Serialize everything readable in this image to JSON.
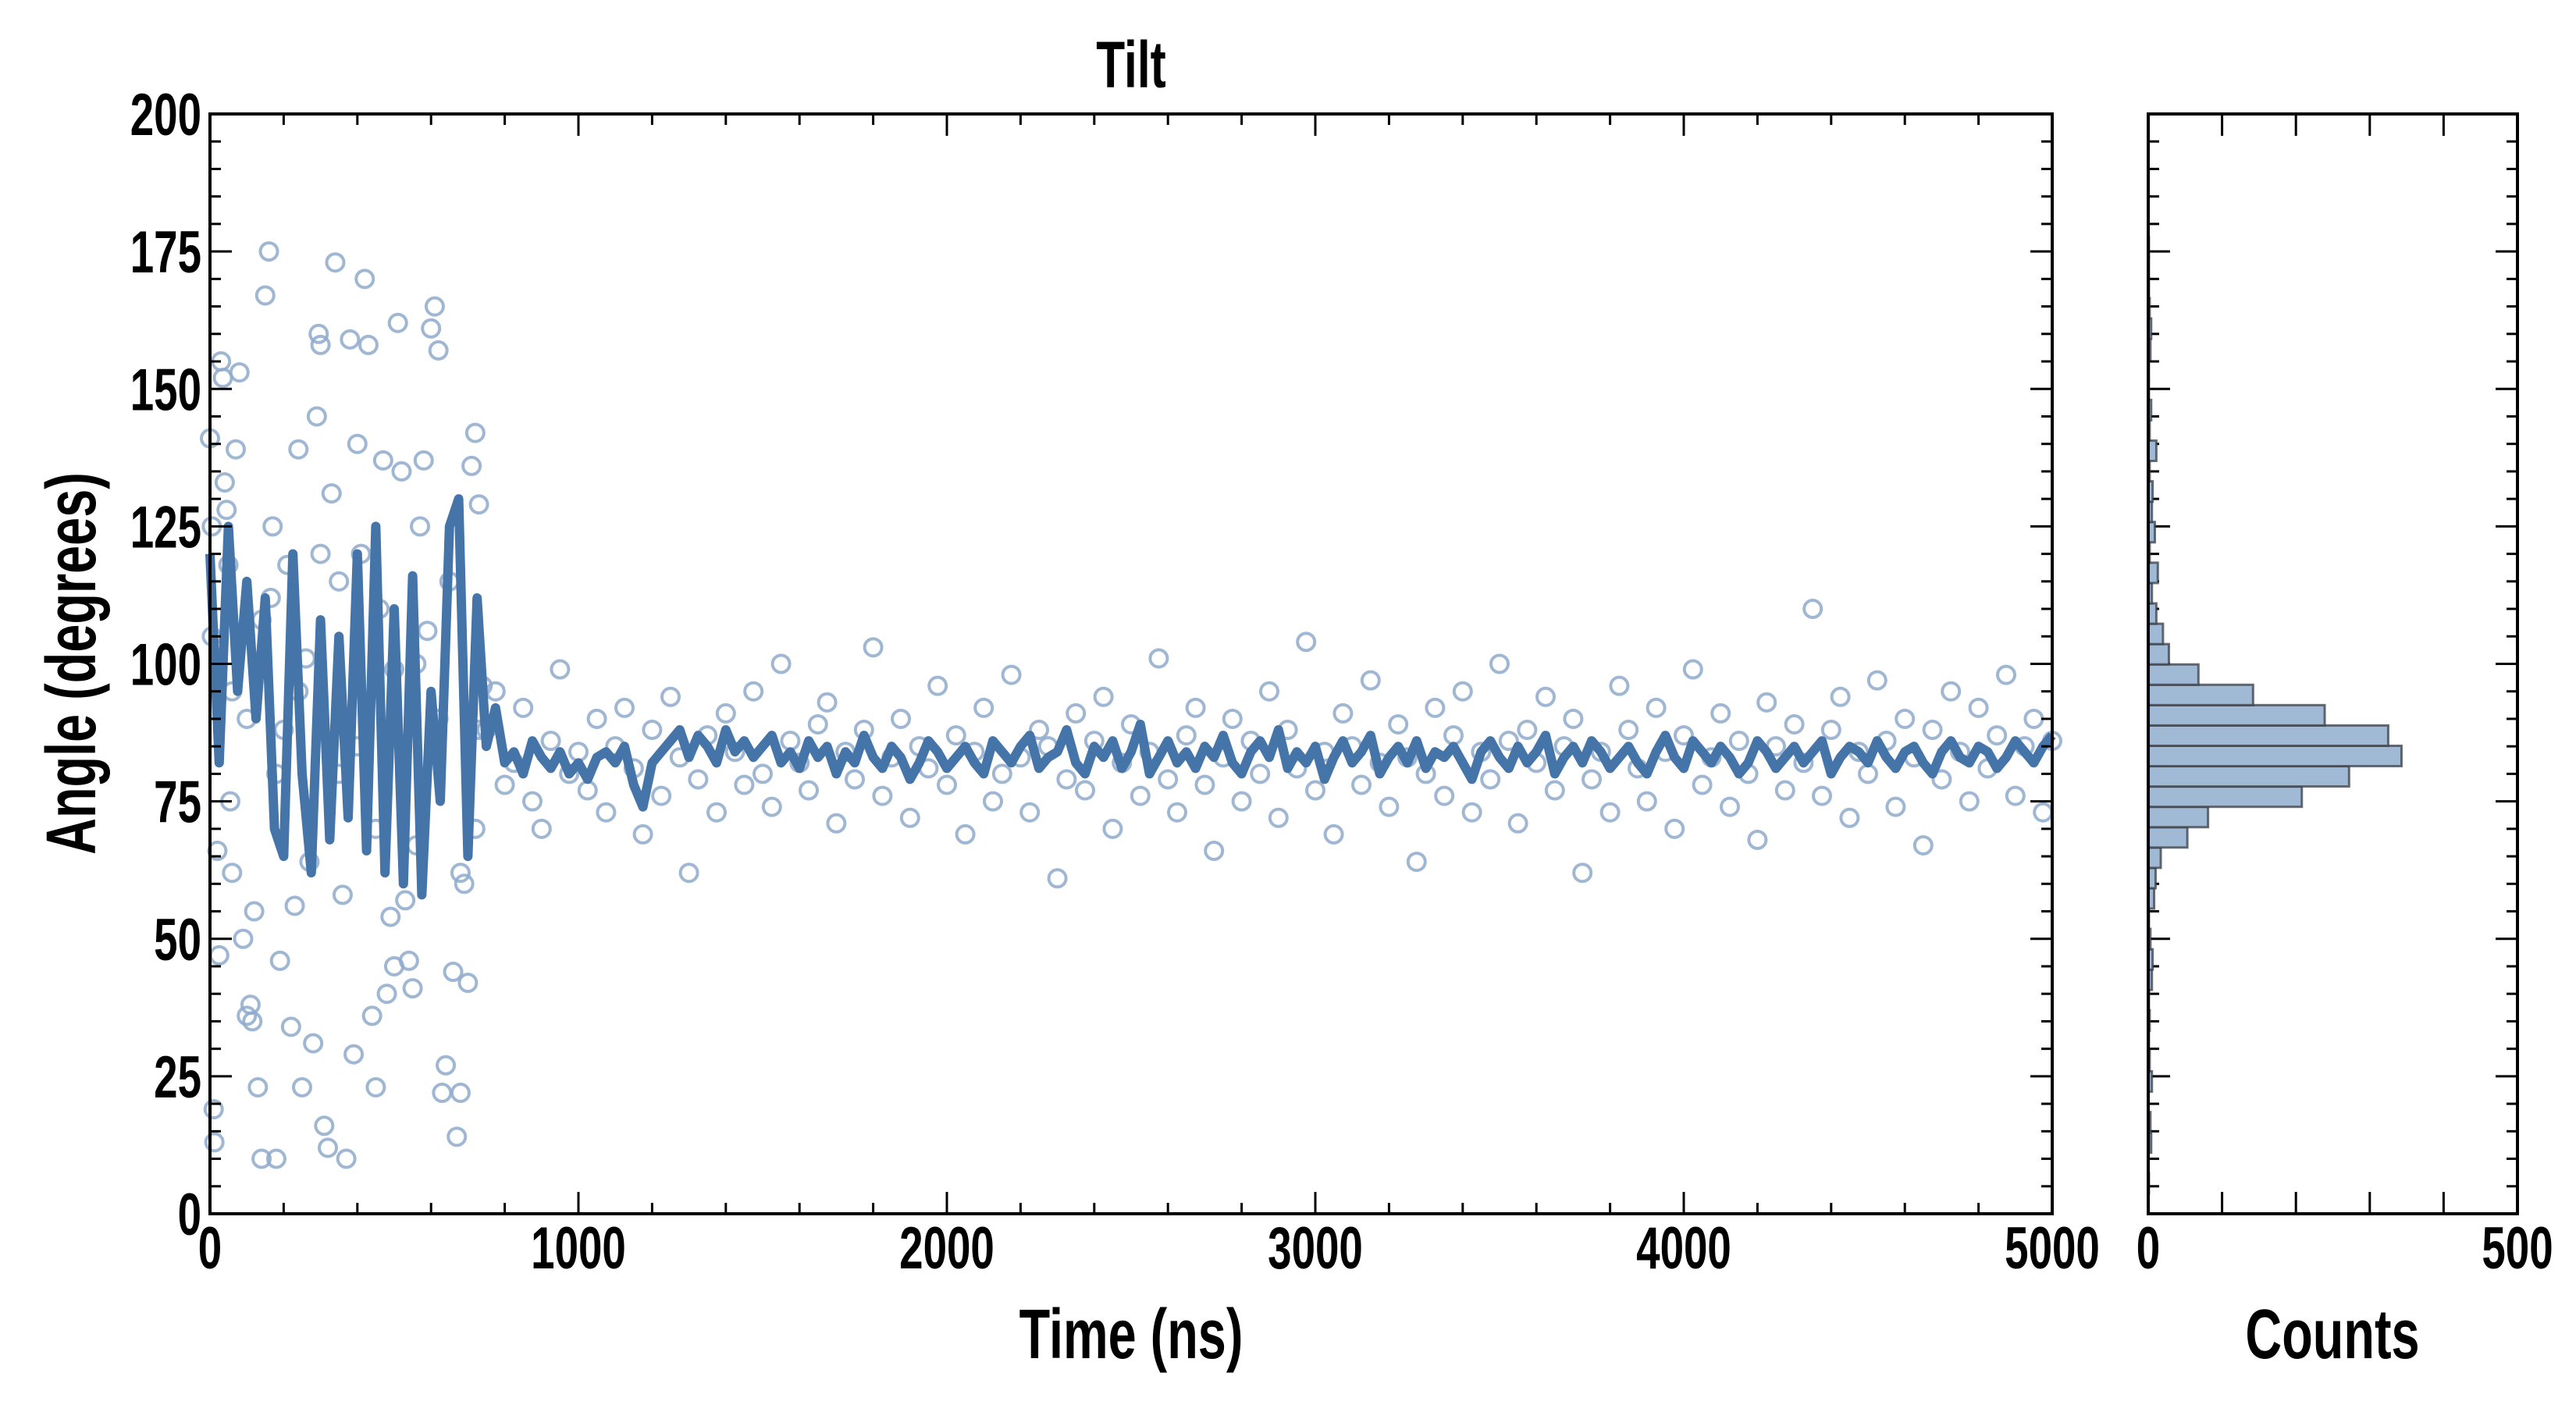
{
  "chart_data": [
    {
      "type": "scatter",
      "title": "Tilt",
      "xlabel": "Time (ns)",
      "ylabel": "Angle (degrees)",
      "xlim": [
        0,
        5000
      ],
      "ylim": [
        0,
        200
      ],
      "xticks": [
        "0",
        "1000",
        "2000",
        "3000",
        "4000",
        "5000"
      ],
      "yticks": [
        "0",
        "25",
        "50",
        "75",
        "100",
        "125",
        "150",
        "175",
        "200"
      ],
      "grid": false,
      "colors": {
        "scatter": "#8eaacb",
        "line": "#4574a8"
      },
      "scatter_early": [
        [
          0,
          141
        ],
        [
          5,
          125
        ],
        [
          10,
          19
        ],
        [
          12,
          13
        ],
        [
          20,
          66
        ],
        [
          25,
          47
        ],
        [
          30,
          155
        ],
        [
          35,
          152
        ],
        [
          40,
          133
        ],
        [
          45,
          128
        ],
        [
          50,
          118
        ],
        [
          55,
          75
        ],
        [
          60,
          62
        ],
        [
          70,
          139
        ],
        [
          80,
          153
        ],
        [
          90,
          50
        ],
        [
          100,
          36
        ],
        [
          110,
          38
        ],
        [
          115,
          35
        ],
        [
          120,
          55
        ],
        [
          130,
          23
        ],
        [
          140,
          10
        ],
        [
          150,
          167
        ],
        [
          160,
          175
        ],
        [
          165,
          112
        ],
        [
          170,
          125
        ],
        [
          180,
          10
        ],
        [
          190,
          46
        ],
        [
          200,
          88
        ],
        [
          210,
          118
        ],
        [
          220,
          34
        ],
        [
          230,
          56
        ],
        [
          240,
          139
        ],
        [
          250,
          23
        ],
        [
          260,
          101
        ],
        [
          270,
          64
        ],
        [
          280,
          31
        ],
        [
          290,
          145
        ],
        [
          295,
          160
        ],
        [
          300,
          158
        ],
        [
          310,
          16
        ],
        [
          320,
          12
        ],
        [
          330,
          131
        ],
        [
          340,
          173
        ],
        [
          350,
          80
        ],
        [
          360,
          58
        ],
        [
          370,
          10
        ],
        [
          380,
          159
        ],
        [
          390,
          29
        ],
        [
          400,
          140
        ],
        [
          410,
          120
        ],
        [
          420,
          170
        ],
        [
          430,
          158
        ],
        [
          440,
          36
        ],
        [
          450,
          23
        ],
        [
          460,
          110
        ],
        [
          470,
          137
        ],
        [
          480,
          40
        ],
        [
          490,
          54
        ],
        [
          500,
          99
        ],
        [
          510,
          162
        ],
        [
          520,
          135
        ],
        [
          530,
          57
        ],
        [
          540,
          46
        ],
        [
          550,
          41
        ],
        [
          560,
          67
        ],
        [
          570,
          125
        ],
        [
          580,
          137
        ],
        [
          590,
          106
        ],
        [
          600,
          161
        ],
        [
          610,
          165
        ],
        [
          620,
          157
        ],
        [
          630,
          22
        ],
        [
          640,
          27
        ],
        [
          650,
          115
        ],
        [
          660,
          44
        ],
        [
          670,
          14
        ],
        [
          680,
          22
        ],
        [
          690,
          60
        ],
        [
          700,
          42
        ],
        [
          710,
          136
        ],
        [
          720,
          142
        ],
        [
          730,
          129
        ],
        [
          740,
          96
        ],
        [
          5,
          105
        ],
        [
          60,
          95
        ],
        [
          100,
          90
        ],
        [
          140,
          108
        ],
        [
          180,
          80
        ],
        [
          240,
          95
        ],
        [
          300,
          120
        ],
        [
          350,
          115
        ],
        [
          400,
          85
        ],
        [
          450,
          70
        ],
        [
          500,
          45
        ],
        [
          560,
          100
        ],
        [
          620,
          90
        ],
        [
          680,
          62
        ],
        [
          720,
          70
        ],
        [
          730,
          88
        ]
      ],
      "scatter_late": {
        "x_start": 750,
        "x_step": 25,
        "y": [
          88,
          95,
          78,
          82,
          92,
          75,
          70,
          86,
          99,
          80,
          84,
          77,
          90,
          73,
          85,
          92,
          81,
          69,
          88,
          76,
          94,
          83,
          62,
          79,
          87,
          73,
          91,
          84,
          78,
          95,
          80,
          74,
          100,
          86,
          82,
          77,
          89,
          93,
          71,
          84,
          79,
          88,
          103,
          76,
          83,
          90,
          72,
          85,
          81,
          96,
          78,
          87,
          69,
          84,
          92,
          75,
          80,
          98,
          83,
          73,
          88,
          85,
          61,
          79,
          91,
          77,
          86,
          94,
          70,
          82,
          89,
          76,
          84,
          101,
          79,
          73,
          87,
          92,
          78,
          66,
          83,
          90,
          75,
          86,
          80,
          95,
          72,
          88,
          81,
          104,
          77,
          84,
          69,
          91,
          85,
          78,
          97,
          82,
          74,
          89,
          83,
          64,
          80,
          92,
          76,
          87,
          95,
          73,
          84,
          79,
          100,
          86,
          71,
          88,
          82,
          94,
          77,
          85,
          90,
          62,
          79,
          84,
          73,
          96,
          88,
          81,
          75,
          92,
          84,
          70,
          87,
          99,
          78,
          83,
          91,
          74,
          86,
          80,
          68,
          93,
          85,
          77,
          89,
          82,
          110,
          76,
          88,
          94,
          72,
          84,
          80,
          97,
          86,
          74,
          90,
          83,
          67,
          88,
          79,
          95,
          84,
          75,
          92,
          81,
          87,
          98,
          76,
          85,
          90,
          73,
          86
        ]
      },
      "line": {
        "x_start": 0,
        "x_step": 25,
        "y": [
          120,
          82,
          125,
          95,
          115,
          90,
          112,
          70,
          65,
          120,
          80,
          62,
          108,
          68,
          105,
          72,
          120,
          66,
          125,
          62,
          110,
          60,
          116,
          58,
          95,
          75,
          125,
          130,
          65,
          112,
          85,
          92,
          82,
          84,
          80,
          86,
          83,
          81,
          84,
          80,
          82,
          79,
          83,
          84,
          82,
          85,
          78,
          74,
          82,
          84,
          86,
          88,
          83,
          87,
          85,
          82,
          88,
          84,
          86,
          83,
          85,
          87,
          82,
          84,
          81,
          86,
          83,
          85,
          80,
          84,
          82,
          87,
          83,
          81,
          85,
          83,
          79,
          82,
          86,
          84,
          81,
          83,
          85,
          82,
          80,
          86,
          84,
          82,
          85,
          87,
          81,
          83,
          84,
          88,
          82,
          80,
          85,
          83,
          86,
          81,
          84,
          89,
          80,
          83,
          86,
          82,
          84,
          81,
          85,
          83,
          87,
          82,
          80,
          84,
          86,
          83,
          88,
          81,
          84,
          82,
          85,
          79,
          83,
          86,
          82,
          84,
          87,
          80,
          83,
          85,
          82,
          86,
          81,
          84,
          83,
          85,
          82,
          79,
          84,
          86,
          83,
          81,
          85,
          82,
          84,
          87,
          80,
          83,
          85,
          82,
          86,
          84,
          81,
          83,
          85,
          82,
          80,
          84,
          87,
          83,
          81,
          86,
          84,
          82,
          85,
          83,
          80,
          82,
          86,
          84,
          81,
          83,
          85,
          82,
          84,
          86,
          80,
          83,
          85,
          84,
          82,
          86,
          83,
          81,
          84,
          85,
          82,
          80,
          84,
          86,
          83,
          82,
          85,
          84,
          81,
          83,
          86,
          84,
          82,
          85,
          87
        ]
      }
    },
    {
      "type": "bar",
      "orientation": "horizontal",
      "xlabel": "Counts",
      "xlim": [
        0,
        500
      ],
      "xticks": [
        "0",
        "500"
      ],
      "ylim": [
        0,
        200
      ],
      "bin_start": 0,
      "bin_width": 3.7,
      "counts": [
        0,
        1,
        0,
        4,
        3,
        0,
        5,
        2,
        1,
        2,
        1,
        5,
        6,
        3,
        1,
        8,
        10,
        17,
        53,
        81,
        208,
        272,
        343,
        325,
        239,
        142,
        68,
        28,
        20,
        11,
        5,
        13,
        2,
        9,
        5,
        6,
        2,
        11,
        2,
        4,
        1,
        1,
        3,
        4,
        2,
        1,
        1,
        1
      ],
      "colors": {
        "fill": "#a0b9d4",
        "edge": "#3a3f47"
      }
    }
  ]
}
